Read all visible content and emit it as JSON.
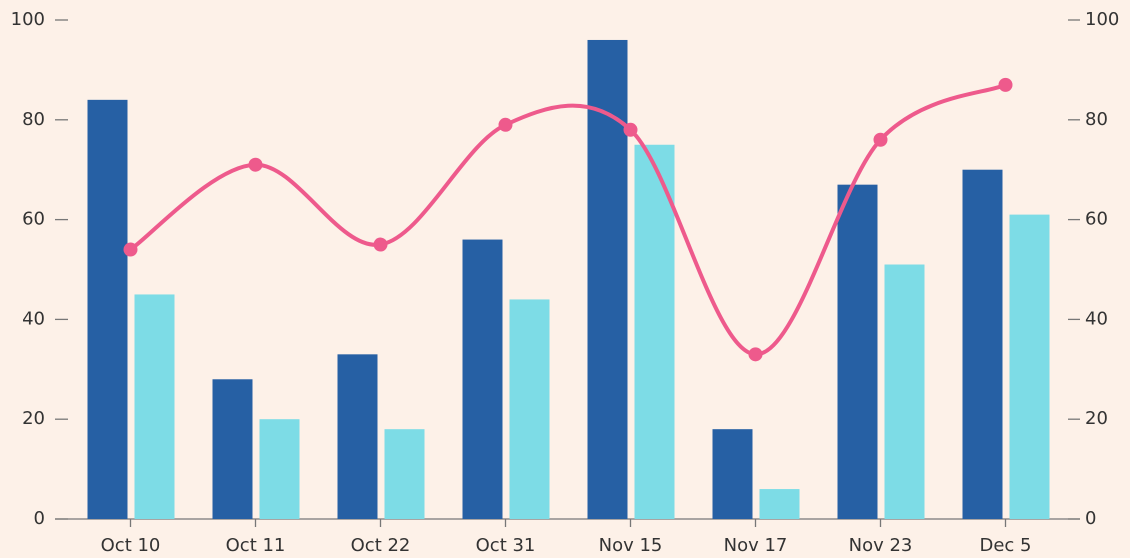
{
  "chart_data": {
    "type": "bar",
    "categories": [
      "Oct 10",
      "Oct 11",
      "Oct 22",
      "Oct 31",
      "Nov 15",
      "Nov 17",
      "Nov 23",
      "Dec 5"
    ],
    "series": [
      {
        "color": "#2660a4",
        "values": [
          84,
          28,
          33,
          56,
          96,
          18,
          67,
          70
        ]
      },
      {
        "color": "#7ddce6",
        "values": [
          45,
          20,
          18,
          44,
          75,
          6,
          51,
          61
        ]
      },
      {
        "type": "line",
        "axis": "y2",
        "color": "#ee5a8c",
        "values": [
          54,
          71,
          55,
          79,
          78,
          33,
          76,
          87
        ]
      }
    ],
    "ylim": [
      0,
      100
    ],
    "yticks": [
      0,
      20,
      40,
      60,
      80,
      100
    ],
    "y2lim": [
      0,
      100
    ],
    "y2ticks": [
      0,
      20,
      40,
      60,
      80,
      100
    ]
  }
}
